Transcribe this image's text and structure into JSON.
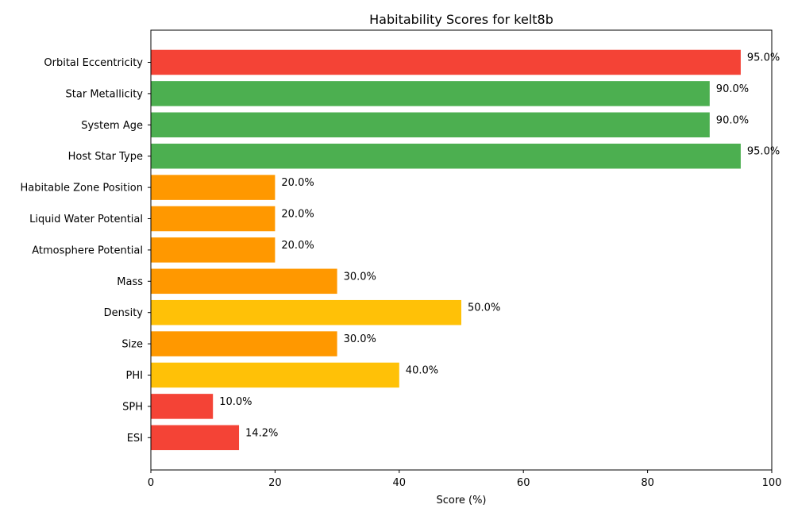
{
  "chart_data": {
    "type": "bar",
    "orientation": "horizontal",
    "title": "Habitability Scores for kelt8b",
    "xlabel": "Score (%)",
    "ylabel": "",
    "xlim": [
      0,
      100
    ],
    "xticks": [
      0,
      20,
      40,
      60,
      80,
      100
    ],
    "grid": false,
    "categories": [
      "Orbital Eccentricity",
      "Star Metallicity",
      "System Age",
      "Host Star Type",
      "Habitable Zone Position",
      "Liquid Water Potential",
      "Atmosphere Potential",
      "Mass",
      "Density",
      "Size",
      "PHI",
      "SPH",
      "ESI"
    ],
    "values": [
      95.0,
      90.0,
      90.0,
      95.0,
      20.0,
      20.0,
      20.0,
      30.0,
      50.0,
      30.0,
      40.0,
      10.0,
      14.2
    ],
    "value_labels": [
      "95.0%",
      "90.0%",
      "90.0%",
      "95.0%",
      "20.0%",
      "20.0%",
      "20.0%",
      "30.0%",
      "50.0%",
      "30.0%",
      "40.0%",
      "10.0%",
      "14.2%"
    ],
    "colors": [
      "#f44336",
      "#4caf50",
      "#4caf50",
      "#4caf50",
      "#ff9800",
      "#ff9800",
      "#ff9800",
      "#ff9800",
      "#ffc107",
      "#ff9800",
      "#ffc107",
      "#f44336",
      "#f44336"
    ]
  }
}
